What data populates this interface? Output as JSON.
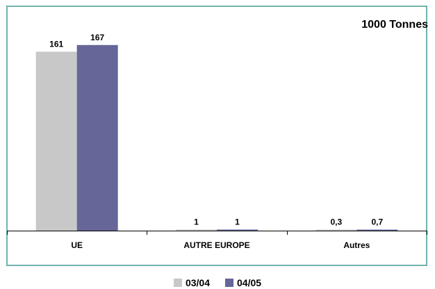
{
  "unit_label": "1000 Tonnes",
  "colors": {
    "frame": "#6fb3ad",
    "series_0304": "#c8c8c8",
    "series_0405": "#666699",
    "axis": "#000000"
  },
  "chart_data": {
    "type": "bar",
    "title": "",
    "unit": "1000 Tonnes",
    "categories": [
      "UE",
      "AUTRE EUROPE",
      "Autres"
    ],
    "series": [
      {
        "name": "03/04",
        "values": [
          161,
          1,
          0.3
        ],
        "labels": [
          "161",
          "1",
          "0,3"
        ]
      },
      {
        "name": "04/05",
        "values": [
          167,
          1,
          0.7
        ],
        "labels": [
          "167",
          "1",
          "0,7"
        ]
      }
    ],
    "ylim": [
      0,
      180
    ],
    "grid": false,
    "legend_position": "bottom-center"
  }
}
